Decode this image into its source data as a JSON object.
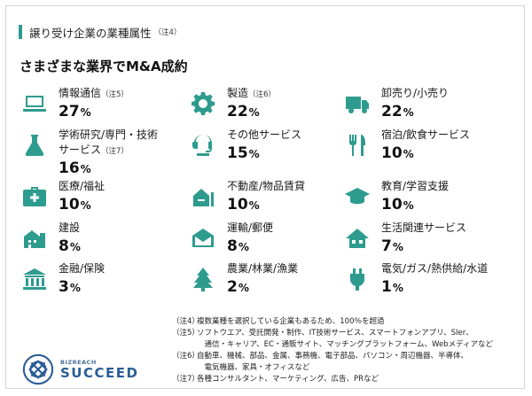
{
  "header": {
    "title": "譲り受け企業の業種属性",
    "note": "（注4）"
  },
  "subtitle": "さまざまな業界でM&A成約",
  "items": [
    {
      "icon": "laptop-icon",
      "label": "情報通信",
      "note": "（注5）",
      "label2": "",
      "value": "27",
      "unit": "%"
    },
    {
      "icon": "gear-icon",
      "label": "製造",
      "note": "（注6）",
      "label2": "",
      "value": "22",
      "unit": "%"
    },
    {
      "icon": "truck-icon",
      "label": "卸売り/小売り",
      "note": "",
      "label2": "",
      "value": "22",
      "unit": "%"
    },
    {
      "icon": "flask-icon",
      "label": "学術研究/専門・技術",
      "note": "",
      "label2": "サービス",
      "note2": "（注7）",
      "value": "16",
      "unit": "%"
    },
    {
      "icon": "headset-icon",
      "label": "その他サービス",
      "note": "",
      "label2": "",
      "value": "15",
      "unit": "%"
    },
    {
      "icon": "cutlery-icon",
      "label": "宿泊/飲食サービス",
      "note": "",
      "label2": "",
      "value": "10",
      "unit": "%"
    },
    {
      "icon": "medical-bag-icon",
      "label": "医療/福祉",
      "note": "",
      "label2": "",
      "value": "10",
      "unit": "%"
    },
    {
      "icon": "real-estate-icon",
      "label": "不動産/物品賃貸",
      "note": "",
      "label2": "",
      "value": "10",
      "unit": "%"
    },
    {
      "icon": "graduation-cap-icon",
      "label": "教育/学習支援",
      "note": "",
      "label2": "",
      "value": "10",
      "unit": "%"
    },
    {
      "icon": "building-icon",
      "label": "建設",
      "note": "",
      "label2": "",
      "value": "8",
      "unit": "%"
    },
    {
      "icon": "mail-icon",
      "label": "運輸/郵便",
      "note": "",
      "label2": "",
      "value": "8",
      "unit": "%"
    },
    {
      "icon": "house-icon",
      "label": "生活関連サービス",
      "note": "",
      "label2": "",
      "value": "7",
      "unit": "%"
    },
    {
      "icon": "bank-icon",
      "label": "金融/保険",
      "note": "",
      "label2": "",
      "value": "3",
      "unit": "%"
    },
    {
      "icon": "tree-icon",
      "label": "農業/林業/漁業",
      "note": "",
      "label2": "",
      "value": "2",
      "unit": "%"
    },
    {
      "icon": "plug-icon",
      "label": "電気/ガス/熱供給/水道",
      "note": "",
      "label2": "",
      "value": "1",
      "unit": "%"
    }
  ],
  "footnotes": [
    {
      "tag": "（注4）",
      "text": "複数業種を選択している企業もあるため、100％を超過"
    },
    {
      "tag": "（注5）",
      "text": "ソフトウエア、受託開発・制作、IT技術サービス、スマートフォンアプリ、SIer、"
    },
    {
      "tag": "",
      "text": "　通信・キャリア、EC・通販サイト、マッチングプラットフォーム、Webメディアなど"
    },
    {
      "tag": "（注6）",
      "text": "自動車、機械、部品、金属、事務機、電子部品、パソコン・周辺機器、半導体、"
    },
    {
      "tag": "",
      "text": "　電気機器、家具・オフィスなど"
    },
    {
      "tag": "（注7）",
      "text": "各種コンサルタント、マーケティング、広告、PRなど"
    }
  ],
  "logo": {
    "small": "BIZREACH",
    "big": "SUCCEED"
  },
  "colors": {
    "accent": "#2e9b8f",
    "logo": "#2a5d96"
  }
}
